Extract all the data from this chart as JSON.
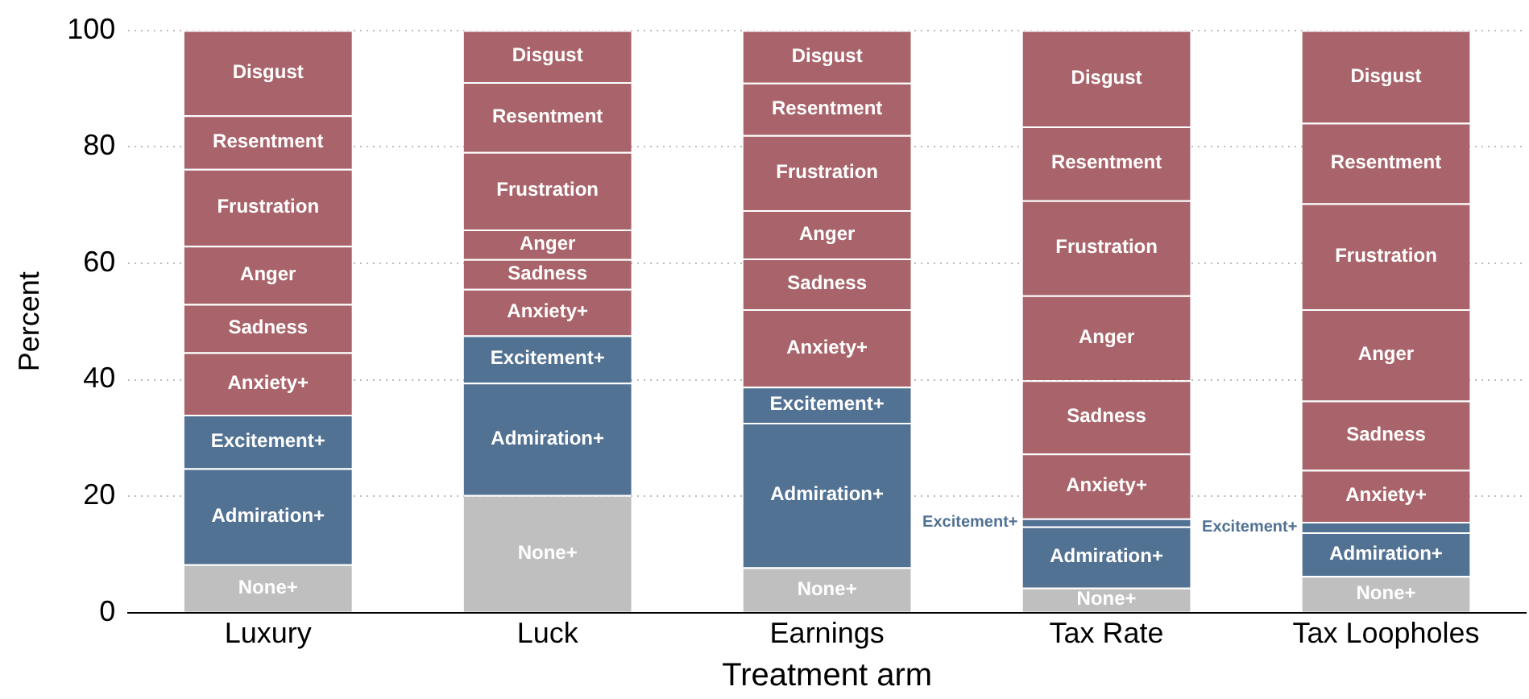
{
  "chart_data": {
    "type": "bar",
    "stacked": true,
    "xlabel": "Treatment arm",
    "ylabel": "Percent",
    "categories": [
      "Luxury",
      "Luck",
      "Earnings",
      "Tax Rate",
      "Tax Loopholes"
    ],
    "ylim": [
      0,
      100
    ],
    "yticks": [
      0,
      20,
      40,
      60,
      80,
      100
    ],
    "grid": "y",
    "legend": false,
    "series": [
      {
        "name": "None+",
        "color": "#bfbfbf",
        "values": [
          8.3,
          20.2,
          7.8,
          4.3,
          6.3
        ]
      },
      {
        "name": "Admiration+",
        "color": "#527293",
        "values": [
          16.5,
          19.3,
          24.8,
          10.5,
          7.5
        ]
      },
      {
        "name": "Excitement+",
        "color": "#527293",
        "values": [
          9.2,
          8.1,
          6.2,
          1.4,
          1.8
        ]
      },
      {
        "name": "Anxiety+",
        "color": "#a8646a",
        "values": [
          10.7,
          8.0,
          13.3,
          11.1,
          8.9
        ]
      },
      {
        "name": "Sadness",
        "color": "#a8646a",
        "values": [
          8.3,
          5.1,
          8.7,
          12.6,
          11.9
        ]
      },
      {
        "name": "Anger",
        "color": "#a8646a",
        "values": [
          10.0,
          5.1,
          8.3,
          14.6,
          15.7
        ]
      },
      {
        "name": "Frustration",
        "color": "#a8646a",
        "values": [
          13.2,
          13.3,
          12.9,
          16.3,
          18.2
        ]
      },
      {
        "name": "Resentment",
        "color": "#a8646a",
        "values": [
          9.2,
          12.0,
          9.0,
          12.7,
          13.8
        ]
      },
      {
        "name": "Disgust",
        "color": "#a8646a",
        "values": [
          14.6,
          8.9,
          9.0,
          16.5,
          15.9
        ]
      }
    ]
  }
}
